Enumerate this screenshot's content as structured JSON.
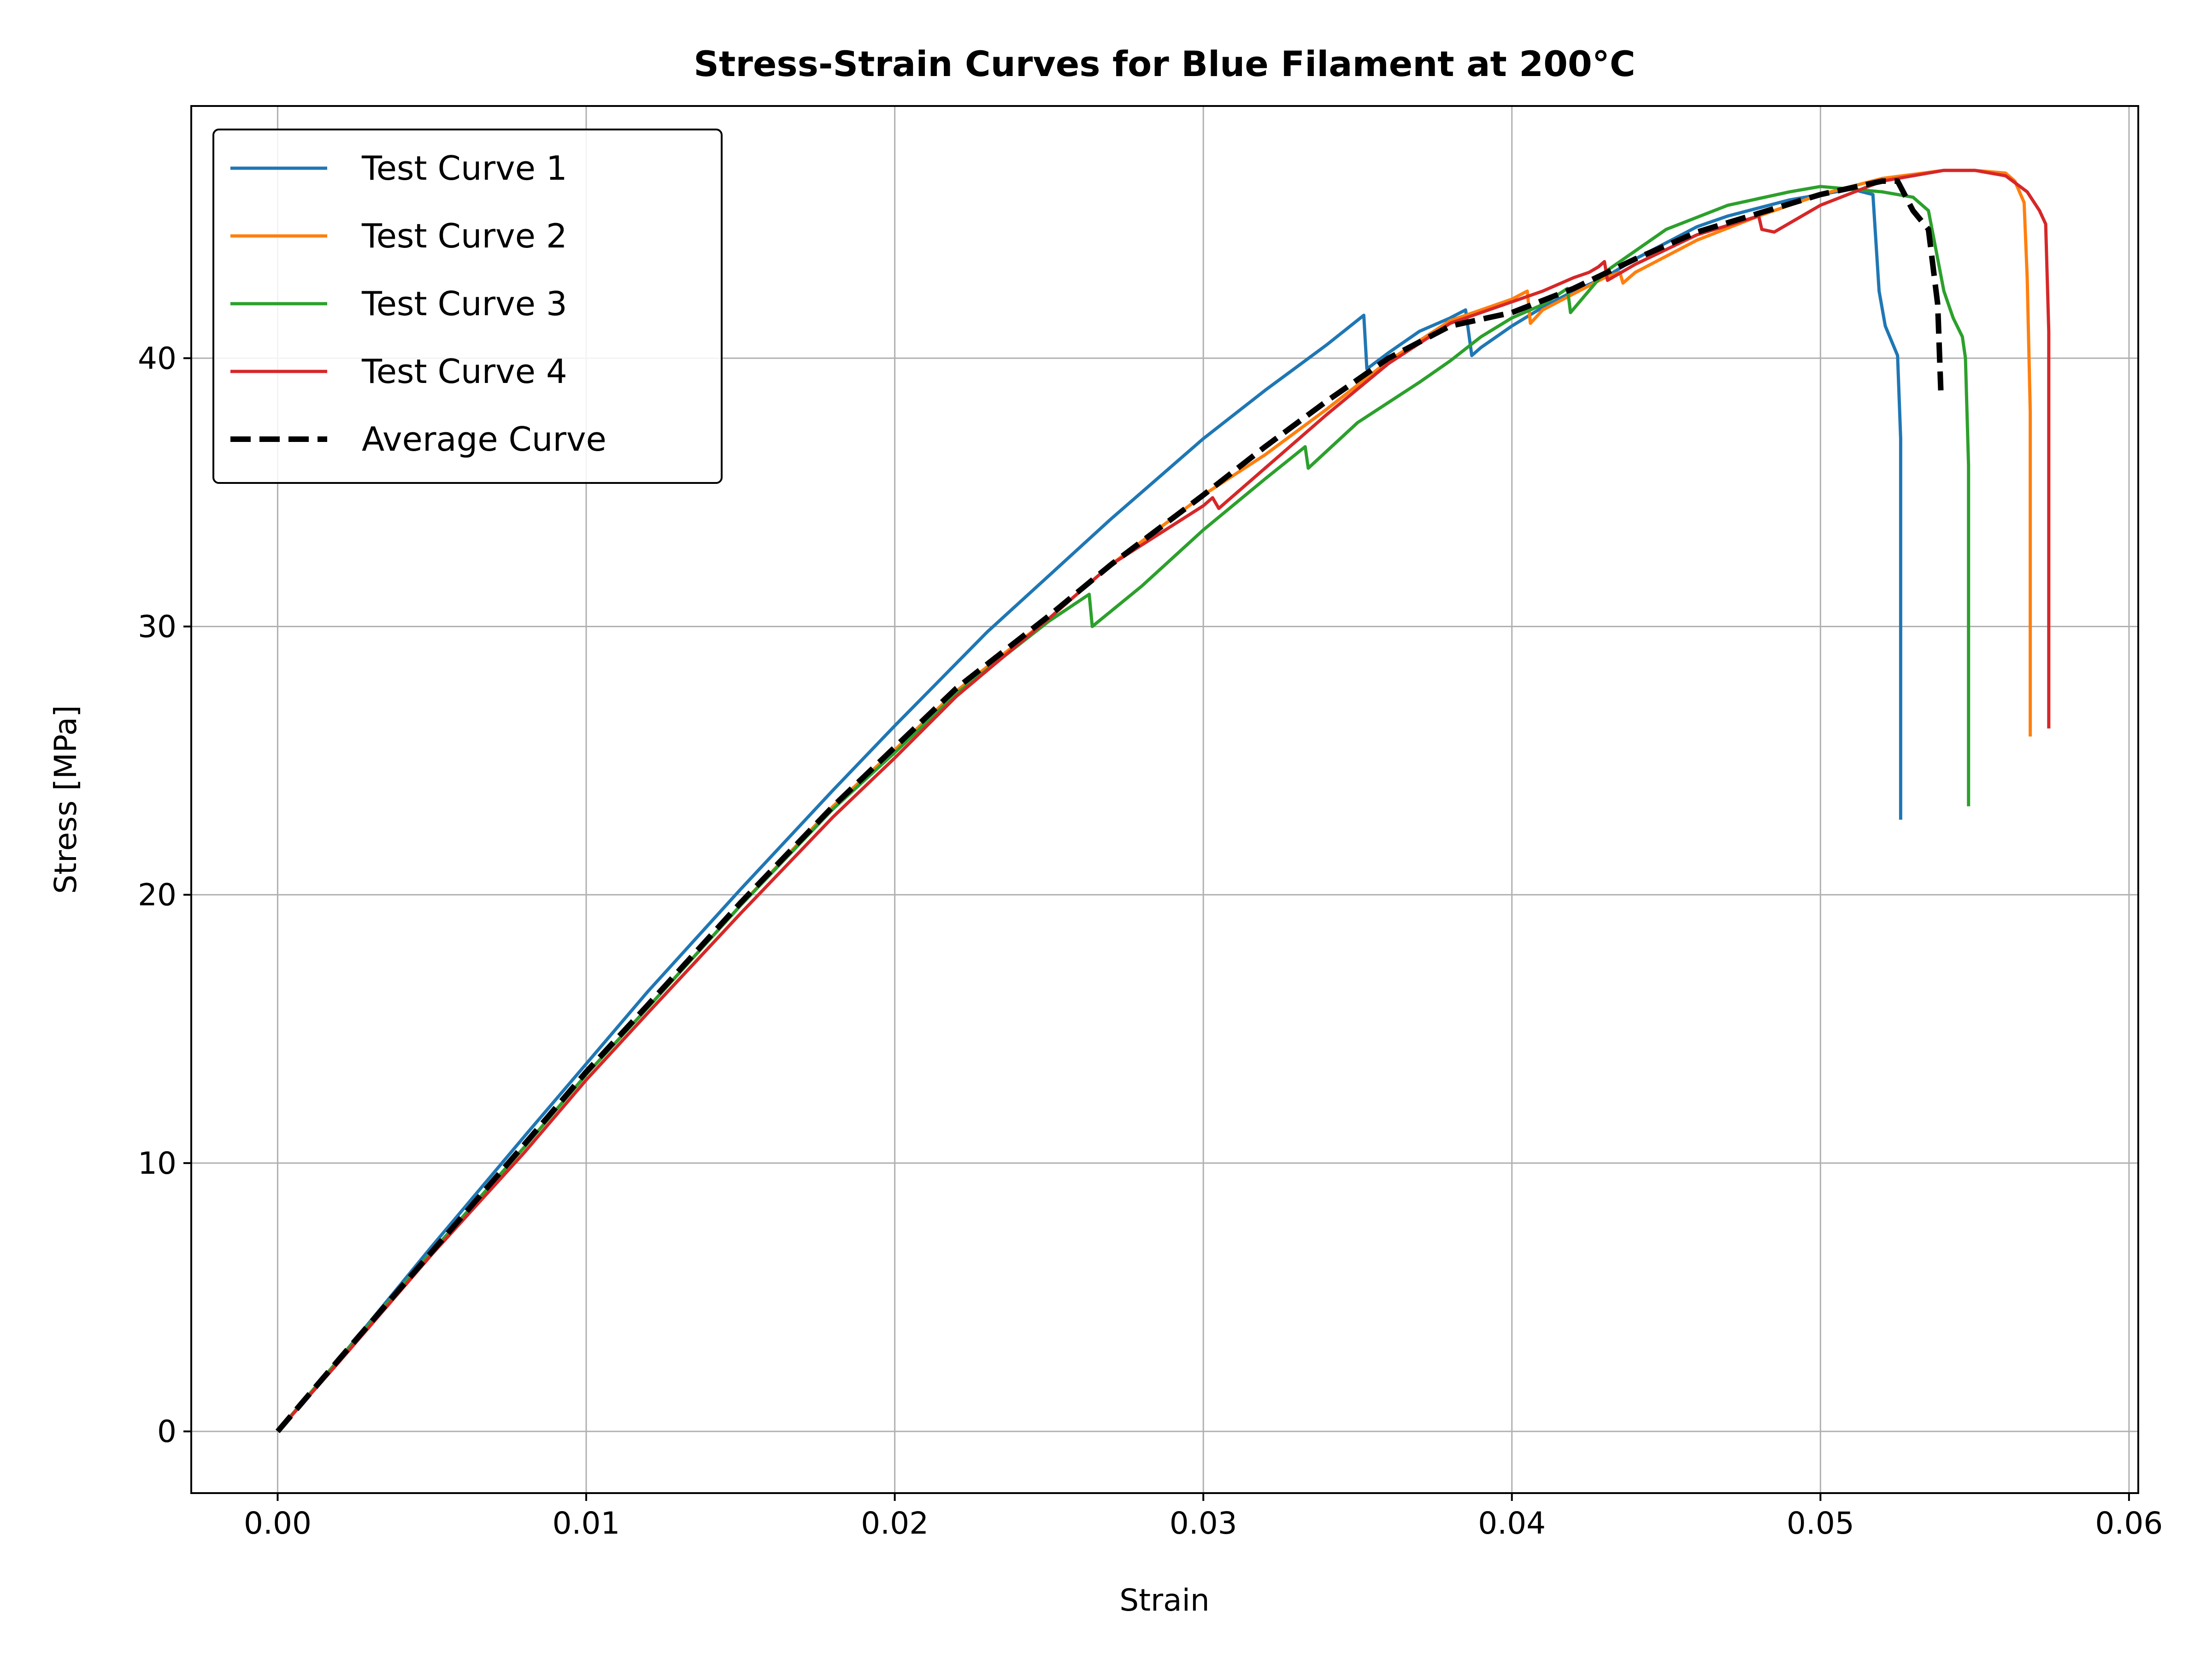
{
  "chart_data": {
    "type": "line",
    "title": "Stress-Strain Curves for Blue Filament at 200°C",
    "xlabel": "Strain",
    "ylabel": "Stress [MPa]",
    "xlim": [
      -0.0028,
      0.0603
    ],
    "ylim": [
      -2.3,
      49.4
    ],
    "xticks": [
      0.0,
      0.01,
      0.02,
      0.03,
      0.04,
      0.05,
      0.06
    ],
    "xtick_labels": [
      "0.00",
      "0.01",
      "0.02",
      "0.03",
      "0.04",
      "0.05",
      "0.06"
    ],
    "yticks": [
      0,
      10,
      20,
      30,
      40
    ],
    "ytick_labels": [
      "0",
      "10",
      "20",
      "30",
      "40"
    ],
    "grid": true,
    "legend_position": "upper left",
    "series": [
      {
        "name": "Test Curve 1",
        "color": "#1f77b4",
        "style": "solid",
        "x": [
          0.0,
          0.002,
          0.005,
          0.008,
          0.01,
          0.012,
          0.015,
          0.018,
          0.02,
          0.023,
          0.025,
          0.027,
          0.03,
          0.032,
          0.034,
          0.0352,
          0.0353,
          0.036,
          0.037,
          0.038,
          0.0385,
          0.0387,
          0.039,
          0.04,
          0.041,
          0.042,
          0.043,
          0.044,
          0.045,
          0.046,
          0.047,
          0.048,
          0.049,
          0.05,
          0.051,
          0.0517,
          0.0519,
          0.0521,
          0.0525,
          0.0526,
          0.0526
        ],
        "y": [
          0.0,
          2.7,
          6.9,
          11.0,
          13.7,
          16.4,
          20.2,
          23.9,
          26.3,
          29.8,
          31.9,
          34.0,
          37.0,
          38.8,
          40.5,
          41.6,
          39.6,
          40.2,
          41.0,
          41.5,
          41.8,
          40.1,
          40.4,
          41.2,
          41.9,
          42.5,
          43.0,
          43.7,
          44.3,
          44.9,
          45.3,
          45.6,
          45.9,
          46.1,
          46.3,
          46.1,
          42.5,
          41.2,
          40.1,
          37.0,
          22.8
        ]
      },
      {
        "name": "Test Curve 2",
        "color": "#ff7f0e",
        "style": "solid",
        "x": [
          0.0,
          0.002,
          0.005,
          0.008,
          0.01,
          0.012,
          0.015,
          0.018,
          0.02,
          0.022,
          0.025,
          0.027,
          0.03,
          0.032,
          0.034,
          0.036,
          0.038,
          0.04,
          0.0405,
          0.0406,
          0.041,
          0.042,
          0.043,
          0.0435,
          0.0436,
          0.044,
          0.046,
          0.048,
          0.05,
          0.052,
          0.054,
          0.055,
          0.056,
          0.0563,
          0.0566,
          0.0567,
          0.0568,
          0.0568
        ],
        "y": [
          0.0,
          2.7,
          6.7,
          10.6,
          13.3,
          15.8,
          19.6,
          23.3,
          25.4,
          27.6,
          30.3,
          32.3,
          34.9,
          36.4,
          38.1,
          39.9,
          41.4,
          42.2,
          42.5,
          41.3,
          41.8,
          42.4,
          43.0,
          43.2,
          42.8,
          43.2,
          44.4,
          45.3,
          46.1,
          46.7,
          47.0,
          47.0,
          46.9,
          46.6,
          45.8,
          43.0,
          38.0,
          25.9
        ]
      },
      {
        "name": "Test Curve 3",
        "color": "#2ca02c",
        "style": "solid",
        "x": [
          0.0,
          0.002,
          0.005,
          0.008,
          0.01,
          0.012,
          0.015,
          0.018,
          0.02,
          0.022,
          0.025,
          0.0263,
          0.0264,
          0.028,
          0.03,
          0.032,
          0.0333,
          0.0334,
          0.035,
          0.037,
          0.038,
          0.039,
          0.04,
          0.041,
          0.0418,
          0.0419,
          0.043,
          0.045,
          0.047,
          0.049,
          0.05,
          0.051,
          0.052,
          0.053,
          0.0535,
          0.054,
          0.0543,
          0.0546,
          0.0547,
          0.0548,
          0.0548
        ],
        "y": [
          0.0,
          2.7,
          6.7,
          10.6,
          13.3,
          15.8,
          19.6,
          23.2,
          25.3,
          27.5,
          30.2,
          31.2,
          30.0,
          31.5,
          33.6,
          35.5,
          36.7,
          35.9,
          37.6,
          39.1,
          39.9,
          40.8,
          41.5,
          42.0,
          42.6,
          41.7,
          43.2,
          44.8,
          45.7,
          46.2,
          46.4,
          46.3,
          46.2,
          46.0,
          45.5,
          42.5,
          41.5,
          40.8,
          40.0,
          36.0,
          23.3
        ]
      },
      {
        "name": "Test Curve 4",
        "color": "#d62728",
        "style": "solid",
        "x": [
          0.0,
          0.002,
          0.005,
          0.008,
          0.01,
          0.012,
          0.015,
          0.018,
          0.02,
          0.022,
          0.025,
          0.027,
          0.03,
          0.0303,
          0.0305,
          0.032,
          0.034,
          0.036,
          0.038,
          0.04,
          0.041,
          0.042,
          0.0425,
          0.0428,
          0.043,
          0.0431,
          0.044,
          0.046,
          0.048,
          0.0481,
          0.0485,
          0.05,
          0.052,
          0.054,
          0.055,
          0.056,
          0.0567,
          0.0571,
          0.0573,
          0.0574,
          0.0574
        ],
        "y": [
          0.0,
          2.6,
          6.6,
          10.4,
          13.1,
          15.6,
          19.3,
          22.9,
          25.1,
          27.4,
          30.3,
          32.3,
          34.5,
          34.8,
          34.4,
          35.9,
          37.9,
          39.8,
          41.3,
          42.1,
          42.5,
          43.0,
          43.2,
          43.4,
          43.6,
          42.9,
          43.5,
          44.6,
          45.3,
          44.8,
          44.7,
          45.7,
          46.6,
          47.0,
          47.0,
          46.8,
          46.2,
          45.5,
          45.0,
          41.0,
          26.2
        ]
      },
      {
        "name": "Average Curve",
        "color": "#000000",
        "style": "dashed",
        "x": [
          0.0,
          0.002,
          0.005,
          0.008,
          0.01,
          0.012,
          0.015,
          0.018,
          0.02,
          0.022,
          0.025,
          0.027,
          0.03,
          0.032,
          0.034,
          0.036,
          0.038,
          0.04,
          0.042,
          0.044,
          0.046,
          0.048,
          0.05,
          0.052,
          0.0525,
          0.053,
          0.0535,
          0.0538,
          0.0539
        ],
        "y": [
          0.0,
          2.7,
          6.7,
          10.7,
          13.4,
          15.9,
          19.7,
          23.3,
          25.5,
          27.7,
          30.4,
          32.3,
          34.9,
          36.7,
          38.4,
          40.0,
          41.2,
          41.7,
          42.6,
          43.7,
          44.7,
          45.4,
          46.1,
          46.6,
          46.6,
          45.5,
          44.8,
          42.0,
          38.8
        ]
      }
    ]
  }
}
